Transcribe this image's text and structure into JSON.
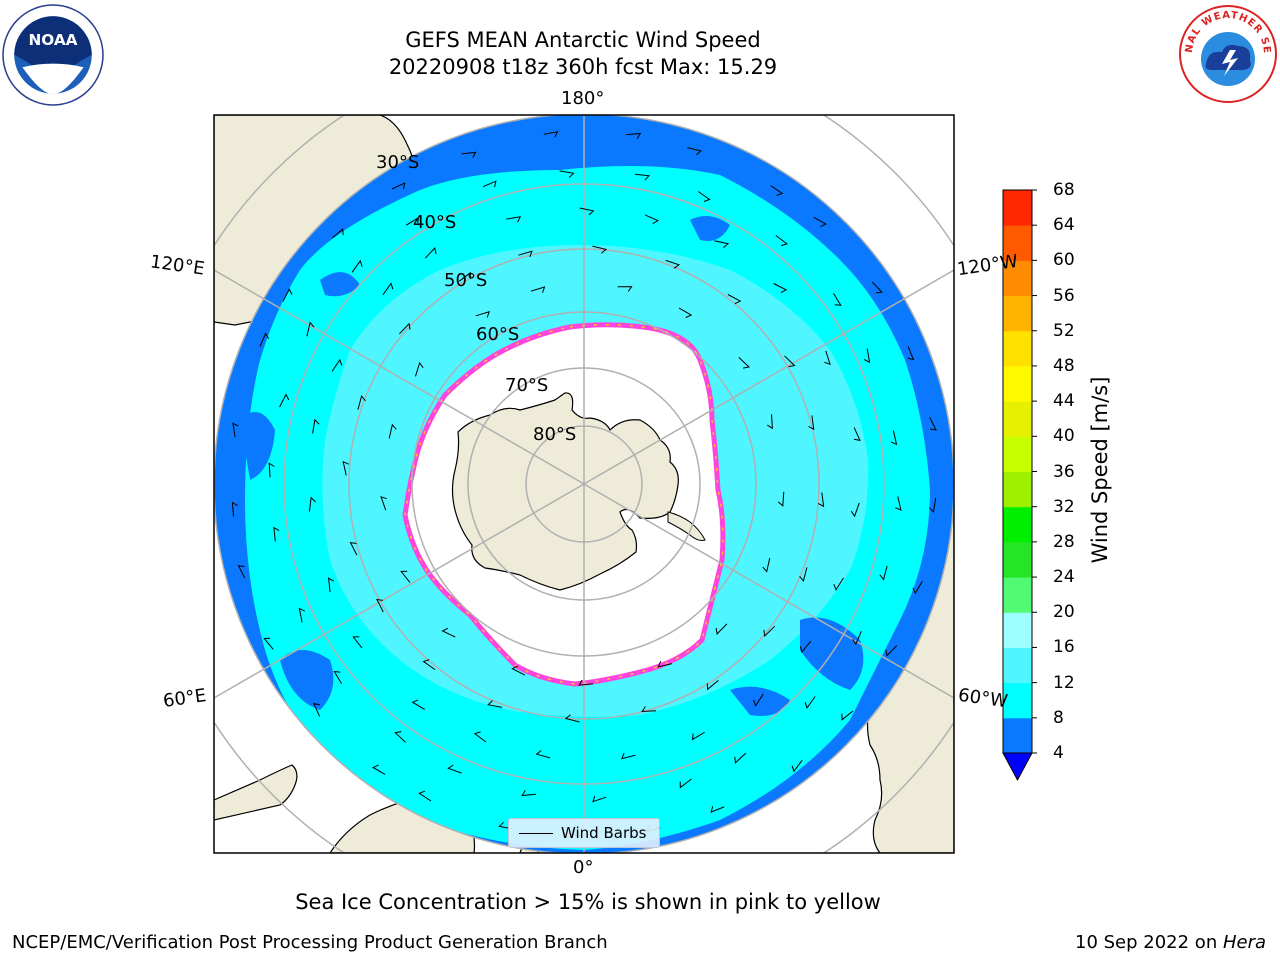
{
  "title": {
    "line1": "GEFS MEAN Antarctic Wind Speed",
    "line2": "20220908 t18z 360h fcst   Max: 15.29"
  },
  "logos": {
    "left": {
      "icon": "noaa-logo",
      "text": "NOAA"
    },
    "right": {
      "icon": "nws-logo",
      "text": "NATIONAL WEATHER SERVICE"
    }
  },
  "map": {
    "projection": "south-polar-stereographic",
    "lat_labels": [
      "30°S",
      "40°S",
      "50°S",
      "60°S",
      "70°S",
      "80°S"
    ],
    "lon_labels": {
      "top": "180°",
      "bottom": "0°",
      "upper_left": "120°E",
      "lower_left": "60°E",
      "upper_right": "120°W",
      "lower_right": "60°W"
    },
    "colors": {
      "land": "#eeecd9",
      "ice_edge": "#ff44dd",
      "ice_edge_yellow": "#ffc030",
      "speed_4_8": "#0a78ff",
      "speed_8_12": "#00ffff",
      "speed_12_16": "#4ff5ff",
      "grid": "#b0b0b0"
    }
  },
  "legend": {
    "label": "Wind Barbs",
    "icon": "wind-barb-line-icon"
  },
  "colorbar": {
    "label": "Wind Speed [m/s]",
    "ticks": [
      4,
      8,
      12,
      16,
      20,
      24,
      28,
      32,
      36,
      40,
      44,
      48,
      52,
      56,
      60,
      64,
      68
    ],
    "colors": [
      "#0a78ff",
      "#00ffff",
      "#4ff5ff",
      "#9dffff",
      "#52fa73",
      "#26e526",
      "#00f000",
      "#9ef000",
      "#c8ff00",
      "#e6f000",
      "#fffa00",
      "#ffe100",
      "#ffb400",
      "#ff8c00",
      "#ff5a00",
      "#ff2800"
    ],
    "extend_color": "#0000ff"
  },
  "note": "Sea Ice Concentration > 15% is shown in pink to yellow",
  "footer": {
    "left": "NCEP/EMC/Verification Post Processing Product Generation Branch",
    "date": "10 Sep 2022 on ",
    "machine": "Hera"
  }
}
